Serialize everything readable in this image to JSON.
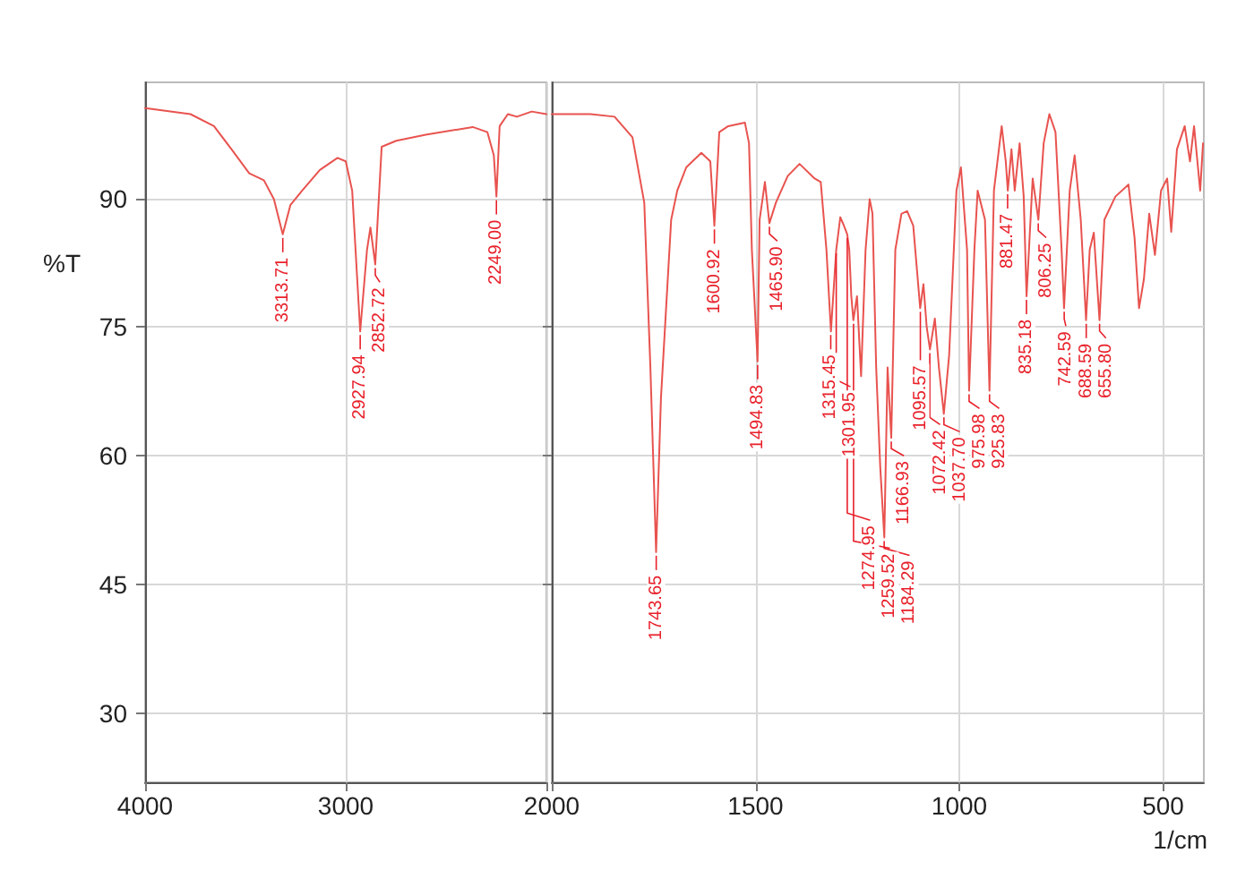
{
  "chart_data": [
    {
      "type": "line",
      "ylabel": "%T",
      "color": "#e8534f",
      "xlim": [
        4000,
        2000
      ],
      "ylim": [
        22,
        103.5
      ],
      "xticks": [
        4000,
        3000,
        {
          "value": 2000,
          "label": null
        }
      ],
      "yticks": [
        30,
        45,
        60,
        75,
        90
      ],
      "grid": true,
      "x": [
        4000,
        3774,
        3657,
        3569,
        3481,
        3408,
        3358,
        3314,
        3276,
        3217,
        3129,
        3041,
        3000,
        2968,
        2928,
        2894,
        2877,
        2853,
        2821,
        2748,
        2601,
        2367,
        2294,
        2262,
        2249,
        2233,
        2192,
        2147,
        2073,
        2000
      ],
      "values": [
        100.5,
        99.8,
        98.4,
        95.7,
        92.9,
        92.1,
        89.9,
        85.8,
        89.2,
        90.9,
        93.3,
        94.7,
        94.3,
        90.9,
        74.5,
        84,
        86.6,
        82.3,
        96,
        96.7,
        97.4,
        98.3,
        97.7,
        95,
        90.2,
        98.4,
        99.8,
        99.5,
        100.1,
        99.8
      ],
      "annotations": [
        {
          "text": "3313.71",
          "x": 3313.71,
          "y": 85.8
        },
        {
          "text": "2927.94",
          "x": 2927.94,
          "y": 74.5
        },
        {
          "text": "2852.72",
          "x": 2852.72,
          "y": 82.3
        },
        {
          "text": "2249.00",
          "x": 2249.0,
          "y": 90.2
        }
      ]
    },
    {
      "type": "line",
      "xlabel": "1/cm",
      "color": "#e8534f",
      "xlim": [
        2000,
        400
      ],
      "ylim": [
        22,
        103.5
      ],
      "xticks": [
        2000,
        1500,
        1000,
        500
      ],
      "yticks": [
        30,
        45,
        60,
        75,
        90
      ],
      "grid": true,
      "tick_labels": "x",
      "x": [
        2000,
        1905,
        1846,
        1802,
        1773,
        1758,
        1744,
        1732,
        1707,
        1692,
        1670,
        1633,
        1611,
        1601,
        1589,
        1567,
        1526,
        1516,
        1509,
        1495,
        1490,
        1477,
        1466,
        1450,
        1421,
        1392,
        1355,
        1340,
        1326,
        1315,
        1302,
        1292,
        1283,
        1275,
        1270,
        1265,
        1260,
        1251,
        1241,
        1230,
        1220,
        1213,
        1204,
        1194,
        1184,
        1176,
        1167,
        1157,
        1142,
        1128,
        1113,
        1096,
        1088,
        1080,
        1072,
        1060,
        1050,
        1038,
        1025,
        1007,
        996,
        981,
        976,
        963,
        955,
        937,
        926,
        915,
        896,
        886,
        881,
        872,
        864,
        852,
        842,
        835,
        820,
        806,
        793,
        779,
        764,
        749,
        743,
        729,
        717,
        702,
        689,
        680,
        670,
        656,
        644,
        617,
        585,
        570,
        559,
        547,
        534,
        520,
        505,
        490,
        480,
        466,
        447,
        434,
        424,
        409,
        402
      ],
      "values": [
        99.8,
        99.8,
        99.5,
        97.1,
        89.5,
        70.3,
        48.8,
        66.8,
        87.5,
        90.9,
        93.6,
        95.3,
        94.3,
        86.8,
        97.7,
        98.4,
        98.8,
        96.4,
        84,
        71,
        87.5,
        91.9,
        87.1,
        89.5,
        92.6,
        94,
        92.3,
        91.9,
        84,
        74.5,
        84,
        87.8,
        86.8,
        85.8,
        84,
        78.6,
        75.8,
        78.6,
        69.3,
        84,
        89.9,
        88.2,
        70.3,
        58.7,
        50.5,
        70.3,
        62.1,
        84,
        88.2,
        88.5,
        86.8,
        77.2,
        80,
        75,
        72.4,
        76,
        70.3,
        64.9,
        71.7,
        90.9,
        93.6,
        84,
        67.6,
        84,
        90.9,
        87.5,
        67.6,
        90.9,
        98.4,
        94.3,
        90.9,
        95.7,
        90.9,
        96.4,
        90.2,
        78.6,
        92.3,
        87.5,
        96.4,
        99.8,
        97.7,
        84,
        77.2,
        90.9,
        95,
        87.5,
        75.8,
        84,
        86,
        75.8,
        87.5,
        90.2,
        91.6,
        85.4,
        77.2,
        80.6,
        88.2,
        83.4,
        90.9,
        92.3,
        86.1,
        95.7,
        98.4,
        94.3,
        98.4,
        90.9,
        96.4
      ],
      "annotations": [
        {
          "text": "1743.65",
          "x": 1743.65,
          "y": 48.8
        },
        {
          "text": "1600.92",
          "x": 1600.92,
          "y": 86.8
        },
        {
          "text": "1494.83",
          "x": 1494.83,
          "y": 71
        },
        {
          "text": "1465.90",
          "x": 1465.9,
          "y": 87.1
        },
        {
          "text": "1315.45",
          "x": 1315.45,
          "y": 74.5
        },
        {
          "text": "1301.95",
          "x": 1301.95,
          "y": 84
        },
        {
          "text": "1274.95",
          "x": 1274.95,
          "y": 85.8
        },
        {
          "text": "1259.52",
          "x": 1259.52,
          "y": 75.8
        },
        {
          "text": "1184.29",
          "x": 1184.29,
          "y": 50.5
        },
        {
          "text": "1166.93",
          "x": 1166.93,
          "y": 62.1
        },
        {
          "text": "1095.57",
          "x": 1095.57,
          "y": 77.2
        },
        {
          "text": "1072.42",
          "x": 1072.42,
          "y": 72.4
        },
        {
          "text": "1037.70",
          "x": 1037.7,
          "y": 64.9
        },
        {
          "text": "975.98",
          "x": 975.98,
          "y": 67.6
        },
        {
          "text": "925.83",
          "x": 925.83,
          "y": 67.6
        },
        {
          "text": "881.47",
          "x": 881.47,
          "y": 90.9
        },
        {
          "text": "835.18",
          "x": 835.18,
          "y": 78.6
        },
        {
          "text": "806.25",
          "x": 806.25,
          "y": 87.5
        },
        {
          "text": "742.59",
          "x": 742.59,
          "y": 77.2
        },
        {
          "text": "688.59",
          "x": 688.59,
          "y": 75.8
        },
        {
          "text": "655.80",
          "x": 655.8,
          "y": 75.8
        }
      ]
    }
  ]
}
